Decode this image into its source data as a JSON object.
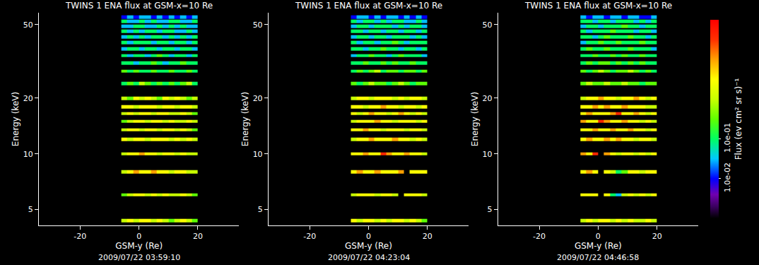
{
  "chart_data": [
    {
      "type": "heatmap",
      "title": "TWINS 1 ENA flux at GSM-x=10 Re",
      "caption": "2009/07/22 03:59:10",
      "xlabel": "GSM-y (Re)",
      "ylabel": "Energy (keV)",
      "log": "y",
      "grid": false,
      "xlim": [
        -34,
        34
      ],
      "xticks": [
        -20,
        0,
        20
      ],
      "ylim": [
        4.1,
        58
      ],
      "yticks": [
        5,
        10,
        20,
        50
      ],
      "x": [
        -5,
        -3,
        -1,
        1,
        3,
        5,
        7,
        9,
        11,
        13,
        15,
        17,
        19
      ],
      "y": [
        4.35,
        6,
        8,
        10,
        12,
        13.5,
        15,
        16.5,
        18,
        20,
        24,
        28,
        31,
        34,
        37,
        40,
        43,
        46,
        49,
        52,
        55
      ],
      "values": [
        [
          1,
          3,
          1,
          3,
          3,
          1,
          3,
          1,
          0.3,
          1,
          3,
          1,
          0.3
        ],
        [
          0.3,
          1,
          3,
          3,
          1,
          3,
          1,
          3,
          1,
          1,
          3,
          1,
          0.3
        ],
        [
          1,
          3,
          10,
          3,
          3,
          10,
          3,
          3,
          1,
          3,
          3,
          1,
          1
        ],
        [
          1,
          3,
          3,
          10,
          3,
          3,
          1,
          3,
          3,
          1,
          3,
          1,
          1
        ],
        [
          3,
          1,
          3,
          3,
          1,
          3,
          3,
          3,
          1,
          3,
          1,
          3,
          1
        ],
        [
          1,
          3,
          3,
          1,
          3,
          3,
          1,
          3,
          3,
          1,
          3,
          1,
          0.3
        ],
        [
          0.3,
          1,
          3,
          3,
          1,
          3,
          3,
          1,
          3,
          1,
          1,
          3,
          1
        ],
        [
          1,
          3,
          1,
          3,
          3,
          1,
          3,
          3,
          1,
          1,
          3,
          1,
          0.3
        ],
        [
          3,
          3,
          1,
          3,
          3,
          3,
          1,
          3,
          3,
          1,
          3,
          3,
          1
        ],
        [
          1,
          0.3,
          3,
          1,
          3,
          1,
          0.3,
          3,
          1,
          3,
          1,
          0.3,
          1
        ],
        [
          0.1,
          0.3,
          0.1,
          1,
          0.3,
          0.1,
          0.3,
          0.1,
          0.3,
          0.1,
          0.3,
          1,
          0.1
        ],
        [
          0.3,
          0.1,
          0.3,
          0.1,
          0.1,
          0.3,
          0.1,
          0.1,
          0.3,
          0.1,
          0.1,
          0.3,
          0.1
        ],
        [
          0.1,
          0.1,
          0.03,
          0.1,
          0.1,
          0.3,
          0.1,
          0.03,
          0.1,
          0.1,
          0.3,
          0.1,
          0.1
        ],
        [
          0.1,
          0.03,
          0.1,
          0.1,
          0.03,
          0.1,
          0.3,
          0.1,
          0.03,
          0.1,
          0.1,
          0.03,
          0.1
        ],
        [
          0.03,
          0.1,
          0.1,
          0.03,
          0.1,
          0.1,
          0.03,
          0.1,
          0.1,
          0.03,
          0.1,
          0.1,
          0.03
        ],
        [
          0.1,
          0.03,
          0.1,
          0.1,
          0.1,
          0.03,
          0.1,
          0.1,
          0.03,
          0.1,
          0.1,
          0.03,
          0.1
        ],
        [
          0.03,
          0.1,
          0.03,
          0.1,
          0.03,
          0.1,
          0.1,
          0.03,
          0.1,
          0.03,
          0.1,
          0.03,
          0.1
        ],
        [
          0.1,
          0.03,
          0.1,
          0.03,
          0.1,
          0.1,
          0.03,
          0.1,
          0.1,
          0.03,
          0.03,
          0.1,
          0.03
        ],
        [
          0.03,
          0.03,
          0.1,
          0.1,
          0.03,
          0.03,
          0.1,
          0.03,
          0.1,
          0.03,
          0.1,
          0.03,
          0.03
        ],
        [
          0.1,
          0.03,
          0.03,
          0.1,
          0.03,
          0.1,
          0.03,
          0.03,
          0.1,
          0.1,
          0.03,
          0.03,
          0.1
        ],
        [
          0.01,
          0.03,
          0.01,
          0.03,
          0.03,
          0.01,
          0.03,
          0.01,
          0.03,
          0.01,
          0.03,
          0.01,
          0.03
        ]
      ]
    },
    {
      "type": "heatmap",
      "title": "TWINS 1 ENA flux at GSM-x=10 Re",
      "caption": "2009/07/22 04:23:04",
      "xlabel": "GSM-y (Re)",
      "ylabel": "Energy (keV)",
      "log": "y",
      "grid": false,
      "xlim": [
        -34,
        34
      ],
      "xticks": [
        -20,
        0,
        20
      ],
      "ylim": [
        4.1,
        58
      ],
      "yticks": [
        5,
        10,
        20,
        50
      ],
      "x": [
        -5,
        -3,
        -1,
        1,
        3,
        5,
        7,
        9,
        11,
        13,
        15,
        17,
        19
      ],
      "y": [
        4.35,
        6,
        8,
        10,
        12,
        13.5,
        15,
        16.5,
        18,
        20,
        24,
        28,
        31,
        34,
        37,
        40,
        43,
        46,
        49,
        52,
        55
      ],
      "values": [
        [
          3,
          1,
          3,
          3,
          1,
          3,
          1,
          3,
          3,
          1,
          3,
          1,
          0.3
        ],
        [
          1,
          3,
          3,
          3,
          1,
          3,
          3,
          1,
          null,
          3,
          3,
          3,
          1
        ],
        [
          3,
          10,
          3,
          3,
          10,
          3,
          3,
          3,
          10,
          null,
          3,
          3,
          3
        ],
        [
          3,
          3,
          10,
          3,
          3,
          40,
          10,
          3,
          3,
          10,
          3,
          3,
          1
        ],
        [
          1,
          3,
          3,
          10,
          3,
          3,
          3,
          10,
          3,
          3,
          1,
          3,
          1
        ],
        [
          3,
          3,
          10,
          3,
          3,
          1,
          3,
          3,
          3,
          1,
          3,
          3,
          1
        ],
        [
          1,
          3,
          3,
          3,
          10,
          3,
          3,
          1,
          3,
          3,
          3,
          1,
          3
        ],
        [
          3,
          1,
          3,
          10,
          3,
          3,
          1,
          3,
          10,
          3,
          1,
          3,
          1
        ],
        [
          3,
          3,
          1,
          3,
          3,
          10,
          3,
          3,
          1,
          3,
          3,
          1,
          3
        ],
        [
          1,
          3,
          3,
          1,
          3,
          3,
          3,
          1,
          3,
          1,
          3,
          3,
          1
        ],
        [
          0.3,
          0.1,
          0.3,
          1,
          0.3,
          0.3,
          0.1,
          0.3,
          1,
          0.3,
          0.1,
          0.3,
          0.3
        ],
        [
          0.1,
          0.3,
          0.1,
          0.3,
          1,
          0.1,
          0.3,
          0.3,
          0.1,
          0.3,
          0.3,
          0.1,
          0.3
        ],
        [
          0.1,
          0.1,
          0.3,
          0.1,
          0.1,
          0.3,
          0.1,
          0.3,
          0.1,
          0.1,
          0.3,
          0.1,
          0.1
        ],
        [
          0.03,
          0.1,
          0.1,
          0.3,
          0.1,
          0.1,
          0.03,
          0.1,
          0.3,
          0.1,
          0.1,
          0.1,
          0.03
        ],
        [
          0.1,
          0.1,
          0.03,
          0.1,
          0.1,
          0.3,
          0.1,
          0.1,
          0.03,
          0.1,
          0.1,
          0.03,
          0.1
        ],
        [
          0.1,
          0.03,
          0.1,
          0.1,
          0.03,
          0.1,
          0.1,
          0.3,
          0.1,
          0.03,
          0.1,
          0.1,
          0.1
        ],
        [
          0.03,
          0.1,
          0.1,
          0.03,
          0.1,
          0.1,
          0.03,
          0.1,
          0.1,
          0.1,
          0.03,
          0.1,
          0.03
        ],
        [
          0.1,
          0.1,
          0.03,
          0.1,
          0.1,
          0.03,
          0.1,
          0.1,
          0.03,
          0.1,
          0.1,
          0.03,
          0.1
        ],
        [
          0.03,
          0.1,
          0.1,
          0.03,
          0.1,
          0.1,
          0.1,
          0.03,
          0.1,
          0.03,
          0.1,
          0.1,
          0.03
        ],
        [
          0.1,
          0.03,
          0.1,
          0.1,
          0.03,
          0.1,
          0.03,
          0.1,
          0.1,
          0.03,
          0.03,
          0.1,
          0.03
        ],
        [
          0.01,
          0.03,
          0.03,
          0.01,
          0.03,
          0.01,
          0.03,
          0.03,
          0.01,
          0.03,
          0.01,
          0.03,
          0.01
        ]
      ]
    },
    {
      "type": "heatmap",
      "title": "TWINS 1 ENA flux at GSM-x=10 Re",
      "caption": "2009/07/22 04:46:58",
      "xlabel": "GSM-y (Re)",
      "ylabel": "Energy (keV)",
      "log": "y",
      "grid": false,
      "xlim": [
        -34,
        34
      ],
      "xticks": [
        -20,
        0,
        20
      ],
      "ylim": [
        4.1,
        58
      ],
      "yticks": [
        5,
        10,
        20,
        50
      ],
      "x": [
        -5,
        -3,
        -1,
        1,
        3,
        5,
        7,
        9,
        11,
        13,
        15,
        17,
        19
      ],
      "y": [
        4.35,
        6,
        8,
        10,
        12,
        13.5,
        15,
        16.5,
        18,
        20,
        24,
        28,
        31,
        34,
        37,
        40,
        43,
        46,
        49,
        52,
        55
      ],
      "values": [
        [
          1,
          3,
          1,
          3,
          3,
          1,
          3,
          1,
          3,
          1,
          1,
          3,
          1
        ],
        [
          3,
          3,
          3,
          null,
          3,
          0.1,
          0.03,
          1,
          3,
          1,
          3,
          1,
          3
        ],
        [
          3,
          10,
          3,
          null,
          3,
          1,
          0.1,
          0.3,
          3,
          3,
          1,
          3,
          3
        ],
        [
          10,
          3,
          40,
          null,
          10,
          3,
          1,
          3,
          3,
          1,
          3,
          1,
          3
        ],
        [
          3,
          10,
          3,
          3,
          10,
          3,
          10,
          3,
          3,
          1,
          3,
          3,
          1
        ],
        [
          3,
          3,
          10,
          3,
          3,
          10,
          3,
          3,
          10,
          3,
          3,
          1,
          3
        ],
        [
          10,
          3,
          3,
          40,
          10,
          3,
          3,
          10,
          3,
          3,
          1,
          3,
          1
        ],
        [
          3,
          10,
          3,
          3,
          3,
          10,
          40,
          3,
          3,
          10,
          3,
          1,
          3
        ],
        [
          3,
          3,
          10,
          3,
          10,
          3,
          3,
          10,
          3,
          3,
          3,
          1,
          1
        ],
        [
          1,
          3,
          3,
          10,
          3,
          3,
          1,
          3,
          3,
          10,
          3,
          1,
          3
        ],
        [
          0.3,
          1,
          0.3,
          0.3,
          1,
          0.3,
          0.3,
          1,
          0.3,
          0.3,
          0.1,
          0.3,
          0.3
        ],
        [
          0.3,
          0.1,
          0.3,
          1,
          0.3,
          0.1,
          0.3,
          0.3,
          1,
          0.3,
          0.1,
          0.3,
          0.1
        ],
        [
          0.1,
          0.3,
          0.1,
          0.3,
          0.3,
          0.1,
          0.3,
          0.1,
          0.3,
          0.1,
          0.3,
          0.1,
          0.1
        ],
        [
          0.1,
          0.1,
          0.3,
          0.1,
          0.1,
          0.3,
          0.1,
          0.3,
          0.1,
          0.1,
          0.3,
          0.1,
          0.1
        ],
        [
          0.1,
          0.3,
          0.1,
          0.1,
          0.3,
          0.1,
          0.1,
          0.1,
          0.3,
          0.1,
          0.1,
          0.1,
          0.03
        ],
        [
          0.03,
          0.1,
          0.1,
          0.3,
          0.1,
          0.1,
          0.3,
          0.1,
          0.1,
          0.1,
          0.3,
          0.1,
          0.1
        ],
        [
          0.1,
          0.1,
          0.03,
          0.1,
          0.3,
          0.1,
          0.1,
          0.1,
          0.3,
          0.1,
          0.1,
          0.03,
          0.1
        ],
        [
          0.1,
          0.03,
          0.1,
          0.1,
          0.1,
          0.3,
          0.1,
          0.1,
          0.1,
          0.03,
          0.1,
          0.1,
          0.03
        ],
        [
          0.03,
          0.1,
          0.1,
          0.03,
          0.1,
          0.1,
          0.1,
          0.3,
          0.1,
          0.1,
          0.03,
          0.1,
          0.1
        ],
        [
          0.1,
          0.1,
          0.03,
          0.1,
          0.1,
          0.03,
          0.1,
          0.1,
          0.1,
          0.03,
          0.1,
          0.03,
          0.1
        ],
        [
          0.03,
          0.01,
          0.03,
          0.03,
          0.01,
          0.03,
          0.03,
          0.01,
          0.03,
          0.03,
          0.01,
          0.01,
          0.03
        ]
      ],
      "colorbar": {
        "title": "Flux (ev cm² sr s)⁻¹",
        "range": [
          0.001,
          100
        ],
        "ticks": [
          {
            "value": 0.01,
            "label": "1.0e-02"
          },
          {
            "value": 0.1,
            "label": "1.0e-01"
          }
        ]
      }
    }
  ]
}
